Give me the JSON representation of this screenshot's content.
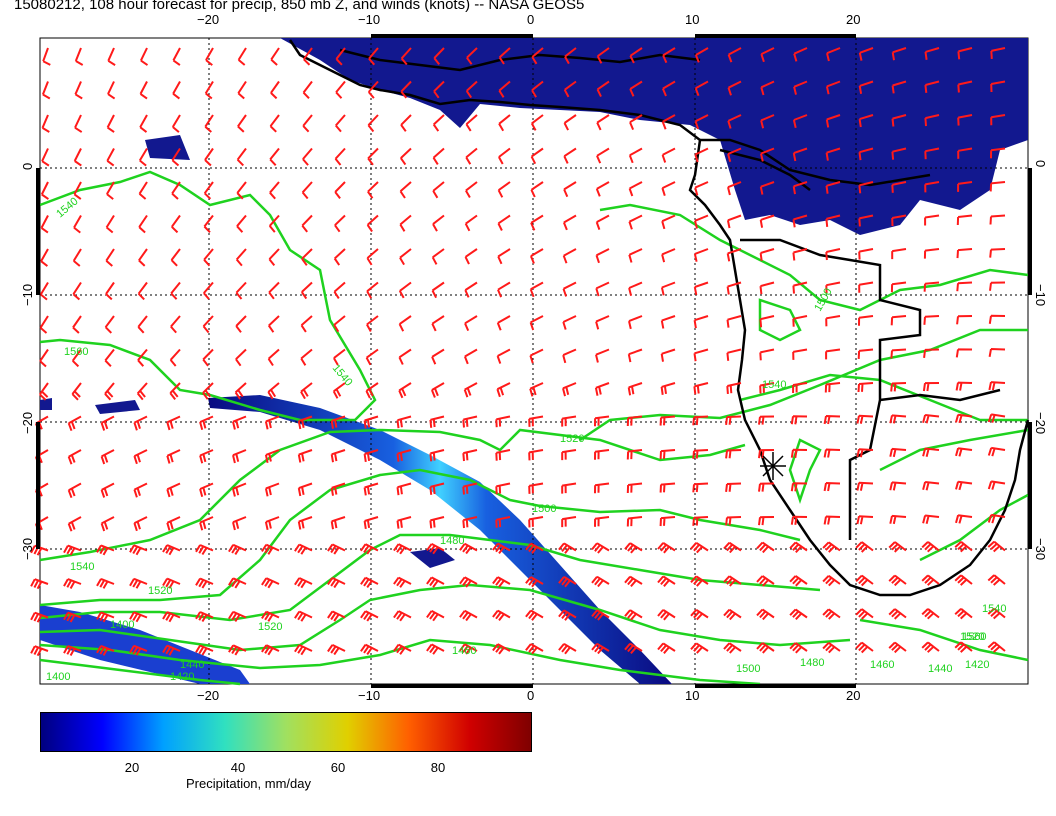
{
  "title": "15080212, 108 hour forecast for precip, 850 mb Z, and winds (knots) -- NASA GEOS5",
  "map": {
    "lon_ticks": [
      "−20",
      "−10",
      "0",
      "10",
      "20"
    ],
    "lat_ticks": [
      "0",
      "−10",
      "−20",
      "−30"
    ],
    "lat_ticks_right": [
      "0",
      "−10",
      "−20",
      "−30"
    ],
    "contour_labels": [
      "1540",
      "1560",
      "1540",
      "1520",
      "1540",
      "1520",
      "1500",
      "1480",
      "1460",
      "1440",
      "1420",
      "1400",
      "1520",
      "1500",
      "1480",
      "1460",
      "1440",
      "1420",
      "1400",
      "1540",
      "1560",
      "1500",
      "1540",
      "1520"
    ],
    "colors": {
      "precip_low": "#10108a",
      "precip_mid": "#1a4fd0",
      "contour": "#1fd21f",
      "wind_barb": "#ff1a1a",
      "coast": "#000000"
    }
  },
  "colorbar": {
    "ticks": [
      "20",
      "40",
      "60",
      "80"
    ],
    "label": "Precipitation, mm/day",
    "colors": [
      "#00007f",
      "#0000ff",
      "#00a0ff",
      "#30e0c0",
      "#a0e060",
      "#e0d000",
      "#ff6000",
      "#d00000",
      "#7f0000"
    ]
  }
}
